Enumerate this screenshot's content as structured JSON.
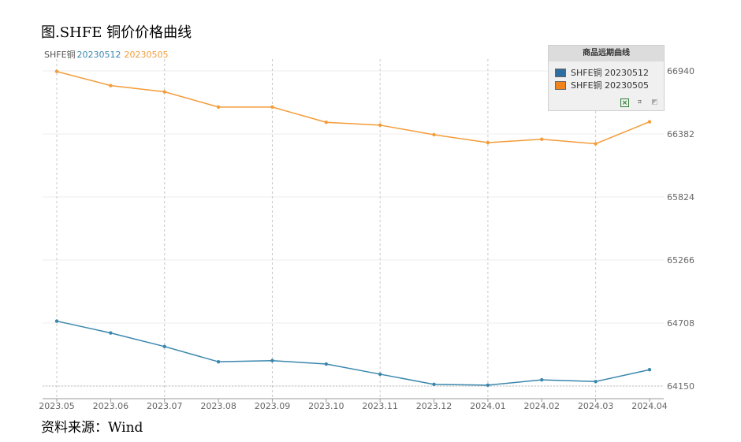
{
  "figure_title": "图.SHFE 铜价价格曲线",
  "source_text": "资料来源：Wind",
  "chart_data": {
    "type": "line",
    "title": "",
    "header_prefix": "SHFE铜",
    "series": [
      {
        "name": "SHFE铜 20230512",
        "header_label": "20230512",
        "color": "#3a87ad",
        "swatch_color": "#2e6fa0",
        "values": [
          64725,
          64620,
          64500,
          64365,
          64375,
          64345,
          64255,
          64165,
          64158,
          64205,
          64190,
          64295
        ]
      },
      {
        "name": "SHFE铜 20230505",
        "header_label": "20230505",
        "color": "#f39c39",
        "swatch_color": "#f0831b",
        "values": [
          66935,
          66810,
          66755,
          66620,
          66620,
          66485,
          66460,
          66375,
          66305,
          66335,
          66295,
          66490
        ]
      }
    ],
    "x_tick_labels": [
      "2023.05",
      "2023.06",
      "2023.07",
      "2023.08",
      "2023.09",
      "2023.10",
      "2023.11",
      "2023.12",
      "2024.01",
      "2024.02",
      "2024.03",
      "2024.04"
    ],
    "y_ticks": [
      64150,
      64708,
      65266,
      65824,
      66382,
      66940
    ],
    "ylim": [
      64150,
      66940
    ],
    "grid": true,
    "legend": {
      "title": "商品远期曲线",
      "position": "top-right"
    }
  }
}
